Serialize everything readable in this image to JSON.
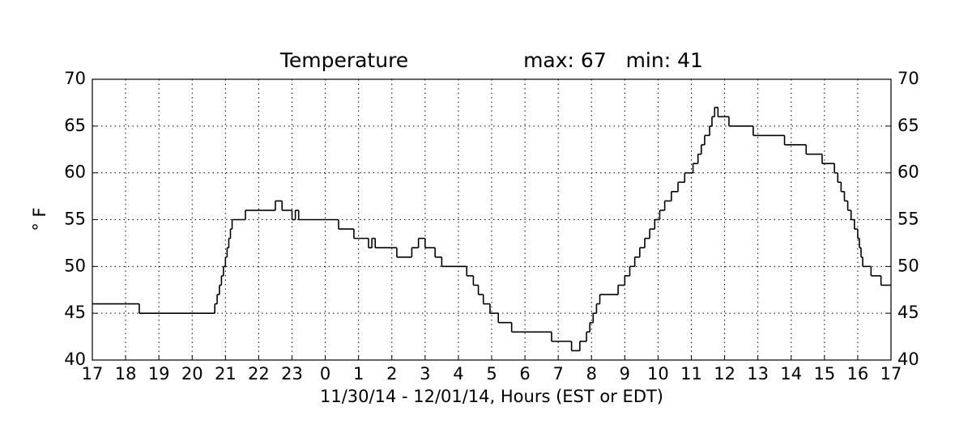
{
  "chart_data": {
    "type": "step",
    "title": "Temperature",
    "subtitle": "max: 67   min: 41",
    "y_label": "° F",
    "x_label": "11/30/14 - 12/01/14, Hours (EST or EDT)",
    "grid": true,
    "color": "#000000",
    "xlim": [
      0,
      24
    ],
    "xticks": [
      {
        "value": 0,
        "label": "17"
      },
      {
        "value": 1,
        "label": "18"
      },
      {
        "value": 2,
        "label": "19"
      },
      {
        "value": 3,
        "label": "20"
      },
      {
        "value": 4,
        "label": "21"
      },
      {
        "value": 5,
        "label": "22"
      },
      {
        "value": 6,
        "label": "23"
      },
      {
        "value": 7,
        "label": "0"
      },
      {
        "value": 8,
        "label": "1"
      },
      {
        "value": 9,
        "label": "2"
      },
      {
        "value": 10,
        "label": "3"
      },
      {
        "value": 11,
        "label": "4"
      },
      {
        "value": 12,
        "label": "5"
      },
      {
        "value": 13,
        "label": "6"
      },
      {
        "value": 14,
        "label": "7"
      },
      {
        "value": 15,
        "label": "8"
      },
      {
        "value": 16,
        "label": "9"
      },
      {
        "value": 17,
        "label": "10"
      },
      {
        "value": 18,
        "label": "11"
      },
      {
        "value": 19,
        "label": "12"
      },
      {
        "value": 20,
        "label": "13"
      },
      {
        "value": 21,
        "label": "14"
      },
      {
        "value": 22,
        "label": "15"
      },
      {
        "value": 23,
        "label": "16"
      },
      {
        "value": 24,
        "label": "17"
      }
    ],
    "ylim": [
      40,
      70
    ],
    "yticks": [
      40,
      45,
      50,
      55,
      60,
      65,
      70
    ],
    "x": [
      0,
      1.41,
      3.68,
      3.75,
      3.82,
      3.88,
      3.94,
      4.0,
      4.05,
      4.1,
      4.15,
      4.2,
      4.6,
      5.5,
      5.7,
      6.0,
      6.1,
      6.2,
      7.4,
      7.86,
      8.3,
      8.4,
      8.5,
      9.15,
      9.6,
      9.8,
      10.0,
      10.3,
      10.5,
      11.25,
      11.45,
      11.6,
      11.75,
      11.95,
      12.2,
      12.6,
      13.8,
      14.4,
      14.65,
      14.85,
      14.95,
      15.05,
      15.15,
      15.25,
      15.8,
      16.0,
      16.15,
      16.3,
      16.45,
      16.6,
      16.75,
      16.9,
      17.05,
      17.2,
      17.4,
      17.6,
      17.8,
      18.05,
      18.2,
      18.3,
      18.4,
      18.55,
      18.62,
      18.7,
      18.8,
      19.13,
      19.86,
      20.8,
      21.45,
      21.93,
      22.3,
      22.4,
      22.5,
      22.6,
      22.7,
      22.8,
      22.9,
      23.0,
      23.05,
      23.1,
      23.15,
      23.4,
      23.7,
      24
    ],
    "values": [
      46,
      45,
      46,
      47,
      48,
      49,
      50,
      51,
      52,
      53,
      54,
      55,
      56,
      57,
      56,
      55,
      56,
      55,
      54,
      53,
      52,
      53,
      52,
      51,
      52,
      53,
      52,
      51,
      50,
      49,
      48,
      47,
      46,
      45,
      44,
      43,
      42,
      41,
      42,
      43,
      44,
      45,
      46,
      47,
      48,
      49,
      50,
      51,
      52,
      53,
      54,
      55,
      56,
      57,
      58,
      59,
      60,
      61,
      62,
      63,
      64,
      65,
      66,
      67,
      66,
      65,
      64,
      63,
      62,
      61,
      60,
      59,
      58,
      57,
      56,
      55,
      54,
      53,
      52,
      51,
      50,
      49,
      48,
      48
    ]
  }
}
